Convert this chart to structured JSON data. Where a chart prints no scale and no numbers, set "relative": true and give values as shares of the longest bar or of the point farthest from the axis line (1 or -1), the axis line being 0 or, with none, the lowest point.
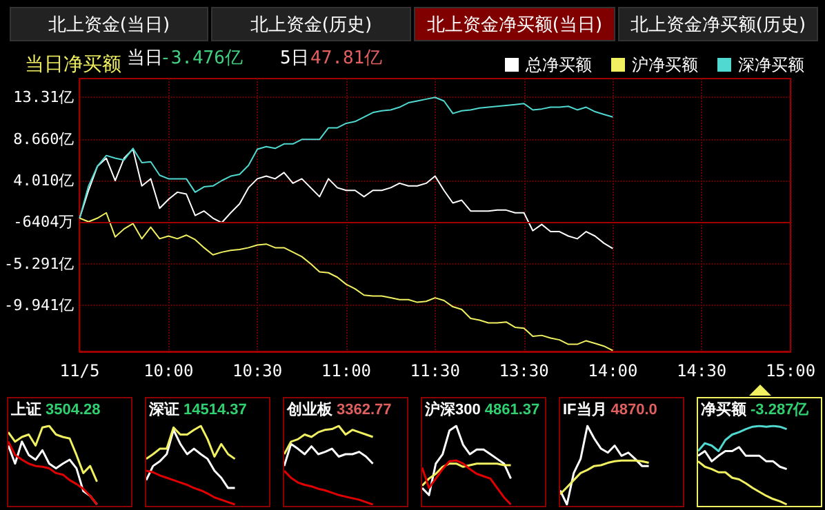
{
  "chart_data": [
    {
      "type": "line",
      "title": "当日净买额",
      "annotations": [
        "北上资金(当日)",
        "北上资金(历史)",
        "北上资金净买额(当日)",
        "北上资金净买额(历史)",
        "当日",
        "-3.476亿",
        "5日",
        "47.81亿"
      ],
      "legend": "top right",
      "grid": true,
      "categories": [
        "11/5",
        null,
        null,
        null,
        null,
        null,
        null,
        null,
        null,
        null,
        "10:00",
        null,
        null,
        null,
        null,
        null,
        null,
        null,
        null,
        null,
        "10:30",
        null,
        null,
        null,
        null,
        null,
        null,
        null,
        null,
        null,
        "11:00",
        null,
        null,
        null,
        null,
        null,
        null,
        null,
        null,
        null,
        "11:30",
        null,
        null,
        null,
        null,
        null,
        null,
        null,
        null,
        null,
        "13:30",
        null,
        null,
        null,
        null,
        null,
        null,
        null,
        null,
        null,
        "14:00",
        null,
        null,
        null,
        null,
        null,
        null,
        null,
        null,
        null,
        "14:30",
        null,
        null,
        null,
        null,
        null,
        null,
        null,
        null,
        null,
        "15:00"
      ],
      "ylim": [
        -15.1,
        15.4
      ],
      "yticks": [
        {
          "value": 13.31,
          "label": "13.31亿"
        },
        {
          "value": 8.66,
          "label": "8.660亿"
        },
        {
          "value": 4.01,
          "label": "4.010亿"
        },
        {
          "value": -5.291,
          "label": "-5.291亿"
        },
        {
          "value": -9.941,
          "label": "-9.941亿"
        }
      ],
      "ref_lines": [
        {
          "axis": "y",
          "value": -0.6404,
          "color": "#a00000",
          "label": "-6404万"
        }
      ],
      "series": [
        {
          "name": "总净买额",
          "color": "#ffffff",
          "values": [
            -0.2,
            2.9,
            5.6,
            6.5,
            4.0,
            6.5,
            7.5,
            3.4,
            4.2,
            0.9,
            1.9,
            2.7,
            2.5,
            0.1,
            0.6,
            -0.2,
            -0.7,
            0.4,
            1.4,
            3.2,
            4.2,
            4.5,
            4.2,
            4.9,
            3.7,
            4.2,
            3.2,
            2.2,
            4.2,
            3.2,
            2.9,
            2.9,
            2.2,
            2.9,
            2.9,
            3.2,
            3.7,
            3.4,
            3.4,
            3.7,
            4.5,
            2.9,
            1.5,
            1.8,
            0.6,
            0.6,
            0.6,
            0.7,
            0.7,
            0.4,
            0.4,
            -1.6,
            -0.9,
            -1.7,
            -1.7,
            -2.2,
            -2.5,
            -1.7,
            -2.2,
            -3.0,
            -3.6,
            null,
            null,
            null,
            null,
            null,
            null,
            null,
            null,
            null,
            null,
            null,
            null,
            null,
            null,
            null,
            null,
            null,
            null,
            null,
            null
          ]
        },
        {
          "name": "沪净买额",
          "color": "#f0f060",
          "values": [
            -0.2,
            -0.6,
            -0.2,
            0.4,
            -2.3,
            -1.4,
            -0.8,
            -2.5,
            -1.2,
            -2.5,
            -2.2,
            -2.5,
            -2.1,
            -2.6,
            -3.5,
            -4.3,
            -4.0,
            -3.8,
            -3.7,
            -3.5,
            -3.2,
            -3.1,
            -3.5,
            -3.5,
            -4.0,
            -4.5,
            -5.3,
            -6.2,
            -6.3,
            -6.8,
            -7.6,
            -8.1,
            -8.8,
            -8.9,
            -8.9,
            -9.1,
            -9.3,
            -9.3,
            -9.6,
            -9.5,
            -9.1,
            -9.4,
            -10.1,
            -10.4,
            -11.4,
            -11.6,
            -11.9,
            -11.9,
            -11.8,
            -12.4,
            -12.5,
            -13.4,
            -13.3,
            -13.6,
            -13.8,
            -14.3,
            -14.3,
            -13.9,
            -14.2,
            -14.5,
            -15.0,
            null,
            null,
            null,
            null,
            null,
            null,
            null,
            null,
            null,
            null,
            null,
            null,
            null,
            null,
            null,
            null,
            null,
            null,
            null,
            null
          ]
        },
        {
          "name": "深净买额",
          "color": "#4fd9d0",
          "values": [
            -0.2,
            3.4,
            5.6,
            6.8,
            6.5,
            6.3,
            7.6,
            6.0,
            6.1,
            4.6,
            4.2,
            4.2,
            4.2,
            2.7,
            3.3,
            3.4,
            4.0,
            4.5,
            4.7,
            5.7,
            7.5,
            7.8,
            7.6,
            8.1,
            8.1,
            8.6,
            8.6,
            8.6,
            9.9,
            9.9,
            10.4,
            10.6,
            11.1,
            11.6,
            11.8,
            11.9,
            12.2,
            12.7,
            12.9,
            13.1,
            13.3,
            12.9,
            11.5,
            11.8,
            11.9,
            12.1,
            12.2,
            12.3,
            12.4,
            12.5,
            12.6,
            11.9,
            12.0,
            12.2,
            12.2,
            12.3,
            11.9,
            12.2,
            11.7,
            11.4,
            11.1,
            null,
            null,
            null,
            null,
            null,
            null,
            null,
            null,
            null,
            null,
            null,
            null,
            null,
            null,
            null,
            null,
            null,
            null,
            null,
            null
          ]
        }
      ]
    },
    {
      "type": "line",
      "title": "上证",
      "subtitle": "3504.28",
      "relative": true,
      "tick_labels": false,
      "categories": [
        null,
        null,
        null,
        null,
        null,
        null,
        null,
        null,
        null,
        null,
        null,
        null,
        null,
        null,
        null,
        null,
        null,
        null,
        null
      ],
      "series": [
        {
          "color": "#ffffff",
          "values": [
            0.75,
            0.52,
            0.8,
            0.63,
            0.57,
            0.69,
            0.52,
            0.46,
            0.52,
            0.57,
            0.46,
            0.17,
            0.11,
            0,
            null,
            null,
            null,
            null,
            null
          ]
        },
        {
          "color": "#f0f060",
          "values": [
            0.92,
            0.8,
            0.86,
            0.89,
            0.75,
            0.98,
            1.0,
            0.89,
            0.86,
            0.84,
            0.63,
            0.4,
            0.49,
            0.29,
            null,
            null,
            null,
            null,
            null
          ]
        },
        {
          "color": "#e00000",
          "values": [
            0.8,
            0.63,
            0.57,
            0.52,
            0.49,
            0.48,
            0.46,
            0.4,
            0.38,
            0.31,
            0.26,
            0.2,
            0.11,
            0,
            null,
            null,
            null,
            null,
            null
          ]
        }
      ]
    },
    {
      "type": "line",
      "title": "深证",
      "subtitle": "14514.37",
      "relative": true,
      "tick_labels": false,
      "categories": [
        null,
        null,
        null,
        null,
        null,
        null,
        null,
        null,
        null,
        null,
        null,
        null,
        null,
        null,
        null,
        null,
        null,
        null,
        null
      ],
      "series": [
        {
          "color": "#ffffff",
          "values": [
            0.31,
            0.49,
            0.55,
            0.64,
            0.95,
            0.77,
            0.64,
            0.71,
            0.64,
            0.58,
            0.43,
            0.34,
            0.21,
            0.21,
            null,
            null,
            null,
            null,
            null
          ]
        },
        {
          "color": "#f0f060",
          "values": [
            0.58,
            0.64,
            0.71,
            0.71,
            0.98,
            0.89,
            0.89,
            0.95,
            1.0,
            0.83,
            0.61,
            0.77,
            0.64,
            0.58,
            null,
            null,
            null,
            null,
            null
          ]
        },
        {
          "color": "#e00000",
          "values": [
            0.43,
            0.41,
            0.37,
            0.34,
            0.31,
            0.28,
            0.25,
            0.21,
            0.18,
            0.14,
            0.09,
            0.06,
            0.03,
            0,
            null,
            null,
            null,
            null,
            null
          ]
        }
      ]
    },
    {
      "type": "line",
      "title": "创业板",
      "subtitle": "3362.77",
      "relative": true,
      "tick_labels": false,
      "categories": [
        null,
        null,
        null,
        null,
        null,
        null,
        null,
        null,
        null,
        null,
        null,
        null,
        null,
        null,
        null,
        null,
        null,
        null,
        null
      ],
      "series": [
        {
          "color": "#ffffff",
          "values": [
            0.49,
            0.77,
            0.71,
            0.64,
            0.74,
            0.64,
            0.67,
            0.71,
            0.61,
            0.64,
            0.64,
            0.67,
            0.61,
            0.52,
            null,
            null,
            null,
            null,
            null
          ]
        },
        {
          "color": "#f0f060",
          "values": [
            0.64,
            0.8,
            0.83,
            0.89,
            0.86,
            0.92,
            0.95,
            0.96,
            1.0,
            0.89,
            0.95,
            0.92,
            0.89,
            0.86,
            null,
            null,
            null,
            null,
            null
          ]
        },
        {
          "color": "#e00000",
          "values": [
            0.43,
            0.34,
            0.28,
            0.25,
            0.23,
            0.2,
            0.18,
            0.15,
            0.12,
            0.1,
            0.08,
            0.06,
            0.03,
            0,
            null,
            null,
            null,
            null,
            null
          ]
        }
      ]
    },
    {
      "type": "line",
      "title": "沪深300",
      "subtitle": "4861.37",
      "relative": true,
      "tick_labels": false,
      "categories": [
        null,
        null,
        null,
        null,
        null,
        null,
        null,
        null,
        null,
        null,
        null,
        null,
        null,
        null,
        null,
        null,
        null,
        null,
        null
      ],
      "series": [
        {
          "color": "#ffffff",
          "values": [
            0.21,
            0.12,
            0.52,
            0.64,
            0.94,
            1.0,
            0.76,
            0.64,
            0.7,
            0.7,
            0.64,
            0.58,
            0.52,
            0.33,
            null,
            null,
            null,
            null,
            null
          ]
        },
        {
          "color": "#f0f060",
          "values": [
            0.24,
            0.33,
            0.39,
            0.48,
            0.52,
            0.52,
            0.48,
            0.5,
            0.52,
            0.52,
            0.52,
            0.52,
            0.5,
            0.5,
            null,
            null,
            null,
            null,
            null
          ]
        },
        {
          "color": "#e00000",
          "values": [
            0.47,
            0.21,
            0.33,
            0.45,
            0.55,
            0.56,
            0.52,
            0.45,
            0.39,
            0.36,
            0.33,
            0.21,
            0.09,
            0,
            null,
            null,
            null,
            null,
            null
          ]
        }
      ]
    },
    {
      "type": "line",
      "title": "IF当月",
      "subtitle": "4870.0",
      "relative": true,
      "tick_labels": false,
      "categories": [
        null,
        null,
        null,
        null,
        null,
        null,
        null,
        null,
        null,
        null,
        null,
        null,
        null,
        null,
        null,
        null,
        null,
        null,
        null
      ],
      "series": [
        {
          "color": "#ffffff",
          "values": [
            0.18,
            0,
            0.4,
            0.58,
            1.0,
            0.84,
            0.71,
            0.66,
            0.75,
            0.62,
            0.66,
            0.58,
            0.49,
            0.49,
            null,
            null,
            null,
            null,
            null
          ]
        },
        {
          "color": "#f0f060",
          "values": [
            0.13,
            0.22,
            0.31,
            0.4,
            0.44,
            0.49,
            0.5,
            0.53,
            0.55,
            0.56,
            0.56,
            0.56,
            0.55,
            0.53,
            null,
            null,
            null,
            null,
            null
          ]
        }
      ]
    },
    {
      "type": "line",
      "title": "净买额",
      "subtitle": "-3.287亿",
      "relative": true,
      "tick_labels": false,
      "categories": [
        null,
        null,
        null,
        null,
        null,
        null,
        null,
        null,
        null,
        null,
        null,
        null,
        null,
        null,
        null,
        null,
        null,
        null,
        null
      ],
      "series": [
        {
          "color": "#4fd9d0",
          "values": [
            0.68,
            0.78,
            0.75,
            0.68,
            0.82,
            0.89,
            0.92,
            0.96,
            0.99,
            1.0,
            0.99,
            1.0,
            0.99,
            0.96,
            null,
            null,
            null,
            null,
            null
          ]
        },
        {
          "color": "#ffffff",
          "values": [
            0.62,
            0.68,
            0.55,
            0.62,
            0.68,
            0.68,
            0.73,
            0.62,
            0.62,
            0.62,
            0.55,
            0.55,
            0.48,
            0.45,
            null,
            null,
            null,
            null,
            null
          ]
        },
        {
          "color": "#f0f060",
          "values": [
            0.55,
            0.48,
            0.45,
            0.41,
            0.41,
            0.34,
            0.32,
            0.27,
            0.21,
            0.16,
            0.11,
            0.07,
            0.04,
            0,
            null,
            null,
            null,
            null,
            null
          ]
        }
      ]
    }
  ]
}
